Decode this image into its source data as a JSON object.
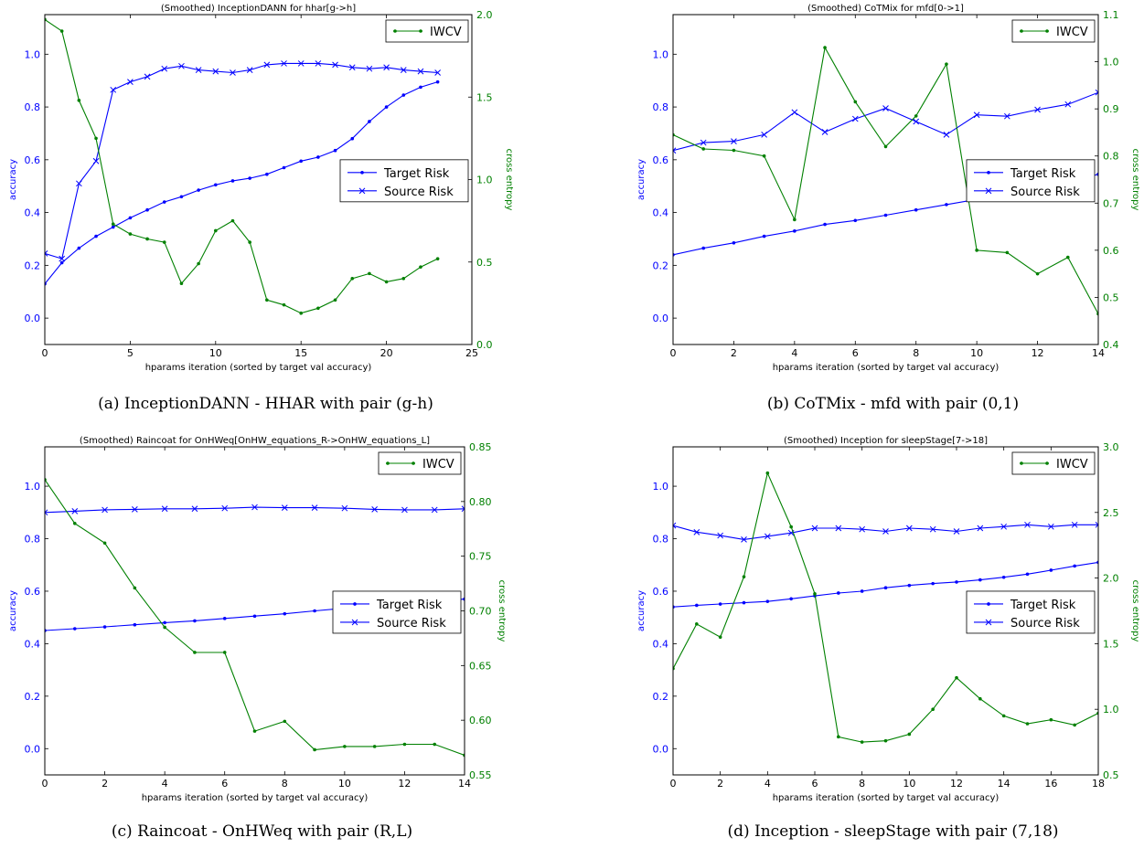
{
  "chart_data": [
    {
      "type": "line",
      "title": "(Smoothed) InceptionDANN for hhar[g->h]",
      "caption": "(a) InceptionDANN - HHAR with pair (g-h)",
      "xlabel": "hparams iteration (sorted by target val accuracy)",
      "ylabel": "accuracy",
      "y2label": "cross entropy",
      "xlim": [
        0,
        25
      ],
      "ylim": [
        -0.1,
        1.15
      ],
      "y2lim": [
        0.0,
        2.0
      ],
      "xticks": [
        0,
        5,
        10,
        15,
        20,
        25
      ],
      "yticks": [
        0.0,
        0.2,
        0.4,
        0.6,
        0.8,
        1.0
      ],
      "y2ticks": [
        0.0,
        0.5,
        1.0,
        1.5,
        2.0
      ],
      "xtick_labels": [
        "0",
        "5",
        "10",
        "15",
        "20",
        "25"
      ],
      "ytick_labels": [
        "0.0",
        "0.2",
        "0.4",
        "0.6",
        "0.8",
        "1.0"
      ],
      "y2tick_labels": [
        "0.0",
        "0.5",
        "1.0",
        "1.5",
        "2.0"
      ],
      "legend_left": {
        "position": "center-right",
        "entries": [
          "Target Risk",
          "Source Risk"
        ]
      },
      "legend_right": {
        "position": "top-right",
        "entries": [
          "IWCV"
        ]
      },
      "x": [
        0,
        1,
        2,
        3,
        4,
        5,
        6,
        7,
        8,
        9,
        10,
        11,
        12,
        13,
        14,
        15,
        16,
        17,
        18,
        19,
        20,
        21,
        22,
        23
      ],
      "series": [
        {
          "name": "Target Risk",
          "axis": "left",
          "marker": "dot",
          "color": "#0000ff",
          "values": [
            0.13,
            0.21,
            0.265,
            0.31,
            0.345,
            0.38,
            0.41,
            0.44,
            0.46,
            0.485,
            0.505,
            0.52,
            0.53,
            0.545,
            0.57,
            0.595,
            0.61,
            0.635,
            0.68,
            0.745,
            0.8,
            0.845,
            0.875,
            0.895
          ]
        },
        {
          "name": "Source Risk",
          "axis": "left",
          "marker": "x",
          "color": "#0000ff",
          "values": [
            0.245,
            0.225,
            0.51,
            0.595,
            0.865,
            0.895,
            0.915,
            0.945,
            0.955,
            0.94,
            0.935,
            0.93,
            0.94,
            0.96,
            0.965,
            0.965,
            0.965,
            0.96,
            0.95,
            0.945,
            0.95,
            0.94,
            0.935,
            0.93
          ]
        },
        {
          "name": "IWCV",
          "axis": "right",
          "marker": "dot",
          "color": "#008000",
          "values": [
            1.97,
            1.9,
            1.48,
            1.25,
            0.73,
            0.67,
            0.64,
            0.62,
            0.37,
            0.49,
            0.69,
            0.75,
            0.62,
            0.27,
            0.24,
            0.19,
            0.22,
            0.27,
            0.4,
            0.43,
            0.38,
            0.4,
            0.47,
            0.52
          ]
        }
      ]
    },
    {
      "type": "line",
      "title": "(Smoothed) CoTMix for mfd[0->1]",
      "caption": "(b) CoTMix - mfd with pair (0,1)",
      "xlabel": "hparams iteration (sorted by target val accuracy)",
      "ylabel": "accuracy",
      "y2label": "cross entropy",
      "xlim": [
        0,
        14
      ],
      "ylim": [
        -0.1,
        1.15
      ],
      "y2lim": [
        0.4,
        1.1
      ],
      "xticks": [
        0,
        2,
        4,
        6,
        8,
        10,
        12,
        14
      ],
      "yticks": [
        0.0,
        0.2,
        0.4,
        0.6,
        0.8,
        1.0
      ],
      "y2ticks": [
        0.4,
        0.5,
        0.6,
        0.7,
        0.8,
        0.9,
        1.0,
        1.1
      ],
      "xtick_labels": [
        "0",
        "2",
        "4",
        "6",
        "8",
        "10",
        "12",
        "14"
      ],
      "ytick_labels": [
        "0.0",
        "0.2",
        "0.4",
        "0.6",
        "0.8",
        "1.0"
      ],
      "y2tick_labels": [
        "0.4",
        "0.5",
        "0.6",
        "0.7",
        "0.8",
        "0.9",
        "1.0",
        "1.1"
      ],
      "legend_left": {
        "position": "center-right",
        "entries": [
          "Target Risk",
          "Source Risk"
        ]
      },
      "legend_right": {
        "position": "top-right",
        "entries": [
          "IWCV"
        ]
      },
      "x": [
        0,
        1,
        2,
        3,
        4,
        5,
        6,
        7,
        8,
        9,
        10,
        11,
        12,
        13,
        14
      ],
      "series": [
        {
          "name": "Target Risk",
          "axis": "left",
          "marker": "dot",
          "color": "#0000ff",
          "values": [
            0.24,
            0.265,
            0.285,
            0.31,
            0.33,
            0.355,
            0.37,
            0.39,
            0.41,
            0.43,
            0.45,
            0.47,
            0.49,
            0.515,
            0.545
          ]
        },
        {
          "name": "Source Risk",
          "axis": "left",
          "marker": "x",
          "color": "#0000ff",
          "values": [
            0.635,
            0.665,
            0.67,
            0.695,
            0.78,
            0.705,
            0.755,
            0.795,
            0.745,
            0.695,
            0.77,
            0.765,
            0.79,
            0.81,
            0.855
          ]
        },
        {
          "name": "IWCV",
          "axis": "right",
          "marker": "dot",
          "color": "#008000",
          "values": [
            0.845,
            0.815,
            0.812,
            0.8,
            0.665,
            1.03,
            0.915,
            0.82,
            0.885,
            0.995,
            0.6,
            0.595,
            0.55,
            0.585,
            0.465
          ]
        }
      ]
    },
    {
      "type": "line",
      "title": "(Smoothed) Raincoat for OnHWeq[OnHW_equations_R->OnHW_equations_L]",
      "caption": "(c) Raincoat - OnHWeq with pair (R,L)",
      "xlabel": "hparams iteration (sorted by target val accuracy)",
      "ylabel": "accuracy",
      "y2label": "cross entropy",
      "xlim": [
        0,
        14
      ],
      "ylim": [
        -0.1,
        1.15
      ],
      "y2lim": [
        0.55,
        0.85
      ],
      "xticks": [
        0,
        2,
        4,
        6,
        8,
        10,
        12,
        14
      ],
      "yticks": [
        0.0,
        0.2,
        0.4,
        0.6,
        0.8,
        1.0
      ],
      "y2ticks": [
        0.55,
        0.6,
        0.65,
        0.7,
        0.75,
        0.8,
        0.85
      ],
      "xtick_labels": [
        "0",
        "2",
        "4",
        "6",
        "8",
        "10",
        "12",
        "14"
      ],
      "ytick_labels": [
        "0.0",
        "0.2",
        "0.4",
        "0.6",
        "0.8",
        "1.0"
      ],
      "y2tick_labels": [
        "0.55",
        "0.60",
        "0.65",
        "0.70",
        "0.75",
        "0.80",
        "0.85"
      ],
      "legend_left": {
        "position": "center-right",
        "entries": [
          "Target Risk",
          "Source Risk"
        ]
      },
      "legend_right": {
        "position": "top-right",
        "entries": [
          "IWCV"
        ]
      },
      "x": [
        0,
        1,
        2,
        3,
        4,
        5,
        6,
        7,
        8,
        9,
        10,
        11,
        12,
        13,
        14
      ],
      "series": [
        {
          "name": "Target Risk",
          "axis": "left",
          "marker": "dot",
          "color": "#0000ff",
          "values": [
            0.45,
            0.457,
            0.464,
            0.472,
            0.48,
            0.487,
            0.496,
            0.505,
            0.514,
            0.525,
            0.535,
            0.54,
            0.55,
            0.56,
            0.57
          ]
        },
        {
          "name": "Source Risk",
          "axis": "left",
          "marker": "x",
          "color": "#0000ff",
          "values": [
            0.9,
            0.905,
            0.91,
            0.912,
            0.914,
            0.914,
            0.916,
            0.92,
            0.918,
            0.918,
            0.916,
            0.912,
            0.91,
            0.91,
            0.914
          ]
        },
        {
          "name": "IWCV",
          "axis": "right",
          "marker": "dot",
          "color": "#008000",
          "values": [
            0.82,
            0.78,
            0.762,
            0.721,
            0.685,
            0.662,
            0.662,
            0.59,
            0.599,
            0.573,
            0.576,
            0.576,
            0.578,
            0.578,
            0.568
          ]
        }
      ]
    },
    {
      "type": "line",
      "title": "(Smoothed) Inception for sleepStage[7->18]",
      "caption": "(d) Inception - sleepStage with pair (7,18)",
      "xlabel": "hparams iteration (sorted by target val accuracy)",
      "ylabel": "accuracy",
      "y2label": "cross entropy",
      "xlim": [
        0,
        18
      ],
      "ylim": [
        -0.1,
        1.15
      ],
      "y2lim": [
        0.5,
        3.0
      ],
      "xticks": [
        0,
        2,
        4,
        6,
        8,
        10,
        12,
        14,
        16,
        18
      ],
      "yticks": [
        0.0,
        0.2,
        0.4,
        0.6,
        0.8,
        1.0
      ],
      "y2ticks": [
        0.5,
        1.0,
        1.5,
        2.0,
        2.5,
        3.0
      ],
      "xtick_labels": [
        "0",
        "2",
        "4",
        "6",
        "8",
        "10",
        "12",
        "14",
        "16",
        "18"
      ],
      "ytick_labels": [
        "0.0",
        "0.2",
        "0.4",
        "0.6",
        "0.8",
        "1.0"
      ],
      "y2tick_labels": [
        "0.5",
        "1.0",
        "1.5",
        "2.0",
        "2.5",
        "3.0"
      ],
      "legend_left": {
        "position": "center-right",
        "entries": [
          "Target Risk",
          "Source Risk"
        ]
      },
      "legend_right": {
        "position": "top-right",
        "entries": [
          "IWCV"
        ]
      },
      "x": [
        0,
        1,
        2,
        3,
        4,
        5,
        6,
        7,
        8,
        9,
        10,
        11,
        12,
        13,
        14,
        15,
        16,
        17,
        18
      ],
      "series": [
        {
          "name": "Target Risk",
          "axis": "left",
          "marker": "dot",
          "color": "#0000ff",
          "values": [
            0.54,
            0.546,
            0.551,
            0.556,
            0.561,
            0.571,
            0.582,
            0.593,
            0.6,
            0.613,
            0.622,
            0.629,
            0.635,
            0.643,
            0.653,
            0.665,
            0.68,
            0.696,
            0.71
          ]
        },
        {
          "name": "Source Risk",
          "axis": "left",
          "marker": "x",
          "color": "#0000ff",
          "values": [
            0.85,
            0.825,
            0.812,
            0.797,
            0.809,
            0.822,
            0.84,
            0.84,
            0.836,
            0.828,
            0.84,
            0.836,
            0.828,
            0.84,
            0.846,
            0.853,
            0.846,
            0.853,
            0.853
          ]
        },
        {
          "name": "IWCV",
          "axis": "right",
          "marker": "dot",
          "color": "#008000",
          "values": [
            1.31,
            1.65,
            1.55,
            2.01,
            2.8,
            2.39,
            1.88,
            0.79,
            0.75,
            0.76,
            0.81,
            1.0,
            1.24,
            1.08,
            0.95,
            0.89,
            0.92,
            0.88,
            0.97
          ]
        }
      ]
    }
  ]
}
